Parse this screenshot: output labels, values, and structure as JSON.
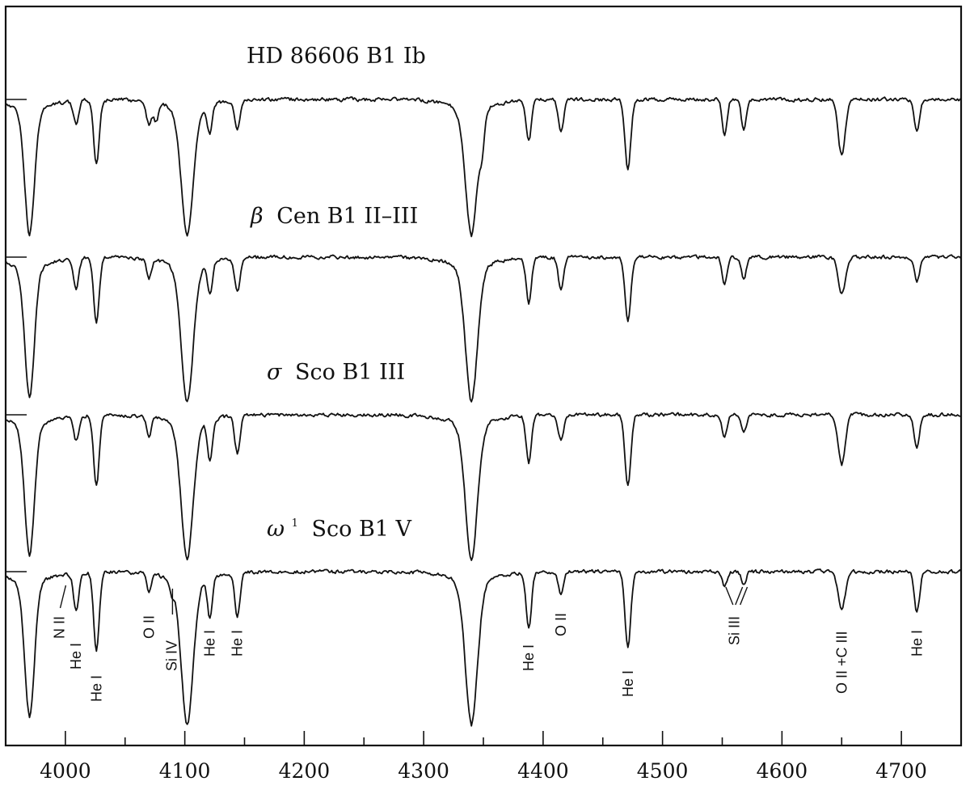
{
  "chart_data": {
    "type": "line",
    "title": "",
    "xlabel": "",
    "ylabel": "",
    "xlim": [
      3950,
      4750
    ],
    "x_ticks": [
      4000,
      4100,
      4200,
      4300,
      4400,
      4500,
      4600,
      4700
    ],
    "x_tick_labels": [
      "4000",
      "4100",
      "4200",
      "4300",
      "4400",
      "4500",
      "4600",
      "4700"
    ],
    "series": [
      {
        "name": "HD 86606  B1 Ib",
        "label_main": "HD 86606  B1 Ib",
        "greek": "",
        "sup": "",
        "absorption_lines": [
          {
            "wl": 3970,
            "depth": 0.62,
            "width": 4
          },
          {
            "wl": 4009,
            "depth": 0.13,
            "width": 2.2
          },
          {
            "wl": 4026,
            "depth": 0.35,
            "width": 2.3
          },
          {
            "wl": 4070,
            "depth": 0.12,
            "width": 2.2
          },
          {
            "wl": 4076,
            "depth": 0.1,
            "width": 2.0
          },
          {
            "wl": 4102,
            "depth": 0.62,
            "width": 5
          },
          {
            "wl": 4121,
            "depth": 0.16,
            "width": 2.0
          },
          {
            "wl": 4144,
            "depth": 0.15,
            "width": 2.2
          },
          {
            "wl": 4340,
            "depth": 0.62,
            "width": 5
          },
          {
            "wl": 4349,
            "depth": 0.14,
            "width": 2.0
          },
          {
            "wl": 4388,
            "depth": 0.22,
            "width": 2.2
          },
          {
            "wl": 4415,
            "depth": 0.18,
            "width": 2.2
          },
          {
            "wl": 4471,
            "depth": 0.38,
            "width": 2.4
          },
          {
            "wl": 4552,
            "depth": 0.2,
            "width": 2.0
          },
          {
            "wl": 4568,
            "depth": 0.17,
            "width": 2.0
          },
          {
            "wl": 4650,
            "depth": 0.3,
            "width": 3.0
          },
          {
            "wl": 4713,
            "depth": 0.18,
            "width": 2.2
          }
        ]
      },
      {
        "name": "Cen  B1 II–III",
        "label_main": "Cen  B1 II–III",
        "greek": "β",
        "sup": "",
        "absorption_lines": [
          {
            "wl": 3970,
            "depth": 0.64,
            "width": 4
          },
          {
            "wl": 4009,
            "depth": 0.16,
            "width": 2.2
          },
          {
            "wl": 4026,
            "depth": 0.35,
            "width": 2.3
          },
          {
            "wl": 4070,
            "depth": 0.1,
            "width": 2.0
          },
          {
            "wl": 4102,
            "depth": 0.66,
            "width": 5
          },
          {
            "wl": 4121,
            "depth": 0.17,
            "width": 2.0
          },
          {
            "wl": 4144,
            "depth": 0.18,
            "width": 2.2
          },
          {
            "wl": 4340,
            "depth": 0.66,
            "width": 5
          },
          {
            "wl": 4388,
            "depth": 0.24,
            "width": 2.2
          },
          {
            "wl": 4415,
            "depth": 0.18,
            "width": 2.2
          },
          {
            "wl": 4471,
            "depth": 0.34,
            "width": 2.4
          },
          {
            "wl": 4552,
            "depth": 0.15,
            "width": 2.0
          },
          {
            "wl": 4568,
            "depth": 0.12,
            "width": 2.0
          },
          {
            "wl": 4650,
            "depth": 0.2,
            "width": 3.0
          },
          {
            "wl": 4713,
            "depth": 0.13,
            "width": 2.2
          }
        ]
      },
      {
        "name": "Sco  B1 III",
        "label_main": "Sco  B1 III",
        "greek": "σ",
        "sup": "",
        "absorption_lines": [
          {
            "wl": 3970,
            "depth": 0.64,
            "width": 4
          },
          {
            "wl": 4009,
            "depth": 0.13,
            "width": 2.2
          },
          {
            "wl": 4026,
            "depth": 0.38,
            "width": 2.3
          },
          {
            "wl": 4070,
            "depth": 0.1,
            "width": 2.0
          },
          {
            "wl": 4102,
            "depth": 0.66,
            "width": 5
          },
          {
            "wl": 4121,
            "depth": 0.22,
            "width": 2.0
          },
          {
            "wl": 4144,
            "depth": 0.2,
            "width": 2.2
          },
          {
            "wl": 4340,
            "depth": 0.66,
            "width": 5
          },
          {
            "wl": 4388,
            "depth": 0.26,
            "width": 2.2
          },
          {
            "wl": 4415,
            "depth": 0.14,
            "width": 2.2
          },
          {
            "wl": 4471,
            "depth": 0.38,
            "width": 2.4
          },
          {
            "wl": 4552,
            "depth": 0.12,
            "width": 2.0
          },
          {
            "wl": 4568,
            "depth": 0.1,
            "width": 2.0
          },
          {
            "wl": 4650,
            "depth": 0.27,
            "width": 3.0
          },
          {
            "wl": 4713,
            "depth": 0.18,
            "width": 2.2
          }
        ]
      },
      {
        "name": "Sco  B1 V",
        "label_main": "Sco  B1 V",
        "greek": "ω",
        "sup": "1",
        "absorption_lines": [
          {
            "wl": 3970,
            "depth": 0.66,
            "width": 4
          },
          {
            "wl": 4009,
            "depth": 0.2,
            "width": 2.2
          },
          {
            "wl": 4026,
            "depth": 0.42,
            "width": 2.3
          },
          {
            "wl": 4070,
            "depth": 0.09,
            "width": 2.0
          },
          {
            "wl": 4089,
            "depth": 0.06,
            "width": 1.5
          },
          {
            "wl": 4102,
            "depth": 0.7,
            "width": 5
          },
          {
            "wl": 4121,
            "depth": 0.22,
            "width": 2.0
          },
          {
            "wl": 4144,
            "depth": 0.24,
            "width": 2.2
          },
          {
            "wl": 4340,
            "depth": 0.7,
            "width": 5
          },
          {
            "wl": 4388,
            "depth": 0.3,
            "width": 2.2
          },
          {
            "wl": 4415,
            "depth": 0.12,
            "width": 2.2
          },
          {
            "wl": 4471,
            "depth": 0.4,
            "width": 2.4
          },
          {
            "wl": 4552,
            "depth": 0.08,
            "width": 2.0
          },
          {
            "wl": 4568,
            "depth": 0.07,
            "width": 2.0
          },
          {
            "wl": 4650,
            "depth": 0.2,
            "width": 3.0
          },
          {
            "wl": 4713,
            "depth": 0.22,
            "width": 2.2
          }
        ]
      }
    ],
    "line_identifications": [
      {
        "text": "N II",
        "wl": 3995
      },
      {
        "text": "He I",
        "wl": 4009
      },
      {
        "text": "He I",
        "wl": 4026
      },
      {
        "text": "O II",
        "wl": 4070
      },
      {
        "text": "Si IV",
        "wl": 4089
      },
      {
        "text": "He I",
        "wl": 4121
      },
      {
        "text": "He I",
        "wl": 4144
      },
      {
        "text": "He I",
        "wl": 4388
      },
      {
        "text": "O II",
        "wl": 4415
      },
      {
        "text": "He I",
        "wl": 4471
      },
      {
        "text": "Si III",
        "wl": 4560
      },
      {
        "text": "O II +C III",
        "wl": 4650
      },
      {
        "text": "He I",
        "wl": 4713
      }
    ],
    "grid": false,
    "legend": "none"
  }
}
